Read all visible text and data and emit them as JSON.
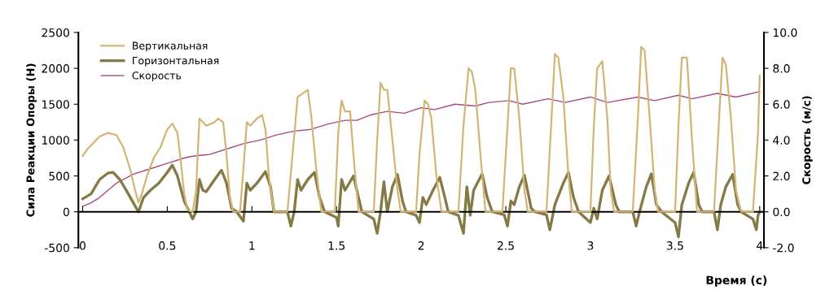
{
  "chart_data": {
    "type": "line",
    "xlabel": "Время (с)",
    "ylabel": "Сила Реакции Опоры (Н)",
    "y2label": "Скорость (м/с)",
    "xlim": [
      -0.025,
      4.025
    ],
    "xticks": [
      0,
      0.5,
      1,
      1.5,
      2,
      2.5,
      3,
      3.5,
      4
    ],
    "ylim": [
      -500,
      2500
    ],
    "yticks": [
      -500,
      0,
      500,
      1000,
      1500,
      2000,
      2500
    ],
    "y2lim": [
      -2,
      10
    ],
    "y2ticks": [
      {
        "value": -2,
        "label": "-2.0"
      },
      {
        "value": 0,
        "label": "0.0"
      },
      {
        "value": 2,
        "label": "2.0"
      },
      {
        "value": 4,
        "label": "4.0"
      },
      {
        "value": 6,
        "label": "6.0"
      },
      {
        "value": 8,
        "label": "8.0"
      },
      {
        "value": 10,
        "label": "10.0"
      }
    ],
    "legend": "top left",
    "marker": "none",
    "line_style": "solid",
    "series": [
      {
        "name": "Вертикальная",
        "color": "#d2b474",
        "x": [
          0,
          0.03,
          0.06,
          0.1,
          0.15,
          0.2,
          0.24,
          0.28,
          0.31,
          0.33,
          0.35,
          0.38,
          0.42,
          0.46,
          0.5,
          0.53,
          0.56,
          0.58,
          0.6,
          0.62,
          0.65,
          0.67,
          0.69,
          0.71,
          0.73,
          0.78,
          0.8,
          0.83,
          0.85,
          0.87,
          0.89,
          0.93,
          0.95,
          0.97,
          0.99,
          1.03,
          1.06,
          1.08,
          1.1,
          1.13,
          1.21,
          1.24,
          1.27,
          1.3,
          1.33,
          1.35,
          1.38,
          1.41,
          1.49,
          1.51,
          1.53,
          1.55,
          1.58,
          1.6,
          1.63,
          1.72,
          1.74,
          1.76,
          1.78,
          1.8,
          1.83,
          1.86,
          1.88,
          1.97,
          1.99,
          2.02,
          2.04,
          2.06,
          2.09,
          2.12,
          2.22,
          2.25,
          2.28,
          2.3,
          2.32,
          2.35,
          2.38,
          2.48,
          2.51,
          2.53,
          2.55,
          2.58,
          2.61,
          2.63,
          2.74,
          2.77,
          2.79,
          2.81,
          2.84,
          2.87,
          2.89,
          3.0,
          3.02,
          3.04,
          3.07,
          3.1,
          3.12,
          3.14,
          3.25,
          3.28,
          3.3,
          3.32,
          3.35,
          3.38,
          3.4,
          3.5,
          3.52,
          3.54,
          3.57,
          3.6,
          3.63,
          3.73,
          3.76,
          3.78,
          3.8,
          3.83,
          3.86,
          3.89,
          3.96,
          3.99,
          4.0
        ],
        "values": [
          780,
          880,
          950,
          1050,
          1100,
          1070,
          900,
          600,
          300,
          130,
          250,
          500,
          750,
          900,
          1150,
          1230,
          1100,
          700,
          250,
          20,
          0,
          300,
          1300,
          1250,
          1200,
          1250,
          1300,
          1250,
          800,
          200,
          0,
          0,
          600,
          1250,
          1200,
          1300,
          1350,
          1150,
          500,
          0,
          0,
          800,
          1600,
          1650,
          1700,
          1350,
          600,
          0,
          0,
          1100,
          1550,
          1400,
          1400,
          800,
          0,
          0,
          1000,
          1800,
          1700,
          1700,
          1000,
          300,
          0,
          0,
          800,
          1550,
          1500,
          1300,
          500,
          0,
          0,
          1200,
          2000,
          1950,
          1700,
          800,
          0,
          0,
          1200,
          2000,
          2000,
          1300,
          300,
          0,
          0,
          1300,
          2200,
          2150,
          1600,
          500,
          0,
          0,
          1200,
          2000,
          2100,
          1300,
          300,
          0,
          0,
          1300,
          2300,
          2250,
          1300,
          300,
          0,
          0,
          1200,
          2150,
          2150,
          1000,
          0,
          0,
          1300,
          2150,
          2050,
          1300,
          300,
          0,
          0,
          1100,
          1900
        ]
      },
      {
        "name": "Горизонтальная",
        "color": "#857a45",
        "x": [
          0,
          0.05,
          0.1,
          0.15,
          0.18,
          0.22,
          0.27,
          0.31,
          0.33,
          0.36,
          0.4,
          0.45,
          0.5,
          0.53,
          0.56,
          0.6,
          0.63,
          0.65,
          0.67,
          0.69,
          0.71,
          0.73,
          0.78,
          0.82,
          0.85,
          0.88,
          0.91,
          0.95,
          0.97,
          0.99,
          1.03,
          1.08,
          1.11,
          1.13,
          1.21,
          1.23,
          1.25,
          1.27,
          1.29,
          1.33,
          1.37,
          1.4,
          1.43,
          1.5,
          1.51,
          1.53,
          1.55,
          1.6,
          1.63,
          1.65,
          1.72,
          1.74,
          1.76,
          1.78,
          1.8,
          1.83,
          1.86,
          1.89,
          1.91,
          1.97,
          1.99,
          2.01,
          2.03,
          2.07,
          2.11,
          2.14,
          2.16,
          2.22,
          2.25,
          2.27,
          2.29,
          2.31,
          2.36,
          2.39,
          2.42,
          2.49,
          2.51,
          2.53,
          2.55,
          2.58,
          2.61,
          2.65,
          2.67,
          2.74,
          2.76,
          2.79,
          2.84,
          2.87,
          2.9,
          2.93,
          3.0,
          3.02,
          3.04,
          3.07,
          3.11,
          3.15,
          3.17,
          3.25,
          3.27,
          3.29,
          3.33,
          3.36,
          3.39,
          3.42,
          3.5,
          3.52,
          3.54,
          3.58,
          3.61,
          3.64,
          3.66,
          3.73,
          3.75,
          3.77,
          3.8,
          3.84,
          3.87,
          3.89,
          3.96,
          3.98,
          3.99,
          4.0
        ],
        "values": [
          180,
          250,
          450,
          540,
          550,
          450,
          250,
          80,
          0,
          200,
          300,
          400,
          550,
          650,
          500,
          150,
          0,
          -100,
          0,
          450,
          300,
          280,
          450,
          580,
          400,
          50,
          0,
          -130,
          400,
          300,
          400,
          560,
          350,
          0,
          0,
          -200,
          0,
          450,
          300,
          450,
          550,
          200,
          0,
          -80,
          -200,
          450,
          300,
          500,
          200,
          0,
          -100,
          -300,
          0,
          420,
          0,
          350,
          520,
          150,
          0,
          -50,
          -150,
          200,
          100,
          300,
          480,
          200,
          0,
          -50,
          -300,
          350,
          -50,
          300,
          530,
          200,
          0,
          -40,
          -200,
          150,
          100,
          350,
          510,
          50,
          0,
          -40,
          -250,
          100,
          400,
          550,
          200,
          0,
          -150,
          50,
          -100,
          300,
          500,
          100,
          0,
          0,
          -200,
          0,
          350,
          530,
          100,
          0,
          -150,
          -350,
          100,
          400,
          550,
          100,
          0,
          0,
          -250,
          100,
          350,
          520,
          100,
          0,
          -100,
          -250,
          -50,
          0
        ]
      },
      {
        "name": "Скорость",
        "color": "#a64a83",
        "axis": "y2",
        "x": [
          0,
          0.05,
          0.1,
          0.15,
          0.2,
          0.3,
          0.4,
          0.5,
          0.6,
          0.65,
          0.75,
          0.85,
          0.95,
          1.05,
          1.15,
          1.25,
          1.35,
          1.45,
          1.55,
          1.62,
          1.7,
          1.8,
          1.9,
          2.0,
          2.08,
          2.2,
          2.32,
          2.4,
          2.52,
          2.6,
          2.75,
          2.85,
          3.0,
          3.1,
          3.28,
          3.38,
          3.52,
          3.6,
          3.75,
          3.86,
          4.0
        ],
        "values": [
          0.3,
          0.5,
          0.8,
          1.2,
          1.6,
          2.1,
          2.4,
          2.7,
          3.0,
          3.1,
          3.2,
          3.5,
          3.8,
          4.0,
          4.3,
          4.5,
          4.6,
          4.9,
          5.1,
          5.1,
          5.4,
          5.6,
          5.5,
          5.8,
          5.7,
          6.0,
          5.9,
          6.1,
          6.2,
          6.0,
          6.3,
          6.1,
          6.4,
          6.1,
          6.4,
          6.2,
          6.5,
          6.3,
          6.6,
          6.4,
          6.7
        ]
      }
    ]
  }
}
